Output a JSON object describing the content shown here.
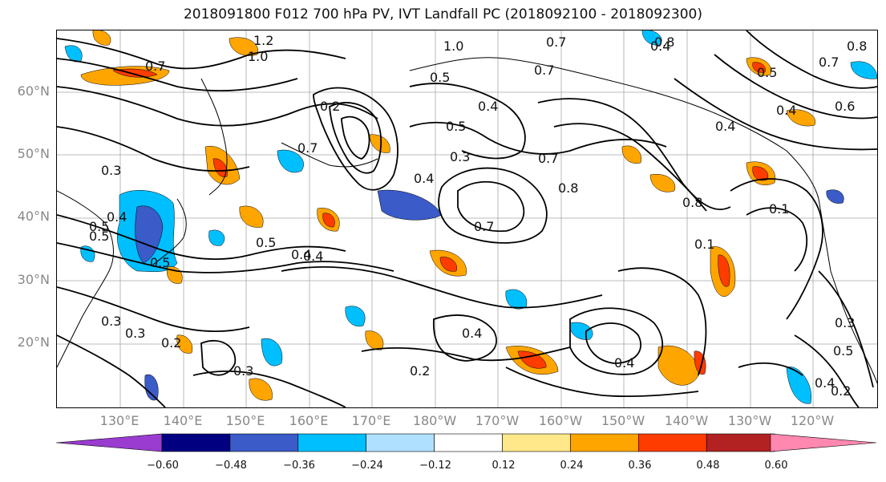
{
  "title": "2018091800 F012 700 hPa PV, IVT Landfall PC (2018092100 - 2018092300)",
  "lat_labels": [
    "60°N",
    "50°N",
    "40°N",
    "30°N",
    "20°N"
  ],
  "lon_labels": [
    "130°E",
    "140°E",
    "150°E",
    "160°E",
    "170°E",
    "180°W",
    "170°W",
    "160°W",
    "150°W",
    "140°W",
    "130°W",
    "120°W"
  ],
  "contour_labels": [
    "1.2",
    "1.0",
    "1.0",
    "0.8",
    "0.7",
    "0.7",
    "0.5",
    "0.4",
    "0.4",
    "0.8",
    "0.7",
    "0.6",
    "0.5",
    "0.4",
    "0.7",
    "0.4",
    "0.2",
    "0.5",
    "0.3",
    "0.7",
    "0.8",
    "0.8",
    "0.4",
    "0.3",
    "0.4",
    "0.5",
    "0.7",
    "0.5",
    "0.4",
    "0.4",
    "0.7",
    "0.3",
    "0.3",
    "0.2",
    "0.3",
    "0.4",
    "0.2",
    "0.4",
    "0.5",
    "0.3",
    "0.4",
    "0.2",
    "0.1",
    "0.5",
    "0.5",
    "0.1"
  ],
  "colorbar": {
    "colors": [
      "#9a3cd0",
      "#000080",
      "#3a5bc8",
      "#00bfff",
      "#b0e0ff",
      "#ffffff",
      "#ffe88a",
      "#ffa500",
      "#ff3c00",
      "#b22222",
      "#ff88b0"
    ],
    "ticks": [
      "−0.60",
      "−0.48",
      "−0.36",
      "−0.24",
      "−0.12",
      "0.12",
      "0.24",
      "0.36",
      "0.48",
      "0.60"
    ]
  }
}
